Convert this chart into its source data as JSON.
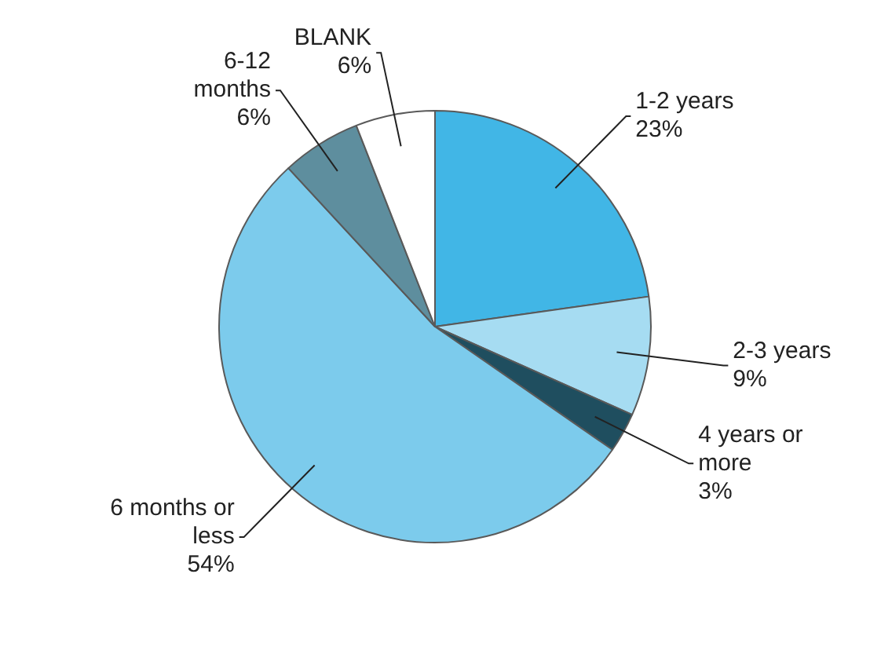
{
  "chart_data": {
    "type": "pie",
    "categories": [
      "1-2 years",
      "2-3 years",
      "4 years or more",
      "6 months or less",
      "6-12 months",
      "BLANK"
    ],
    "values": [
      23,
      9,
      3,
      54,
      6,
      6
    ],
    "value_labels": [
      "23%",
      "9%",
      "3%",
      "54%",
      "6%",
      "6%"
    ],
    "colors": [
      "#41b6e6",
      "#a6dcf2",
      "#1f4e5f",
      "#7ccbec",
      "#5e8e9e",
      "#ffffff"
    ],
    "legend": false
  }
}
